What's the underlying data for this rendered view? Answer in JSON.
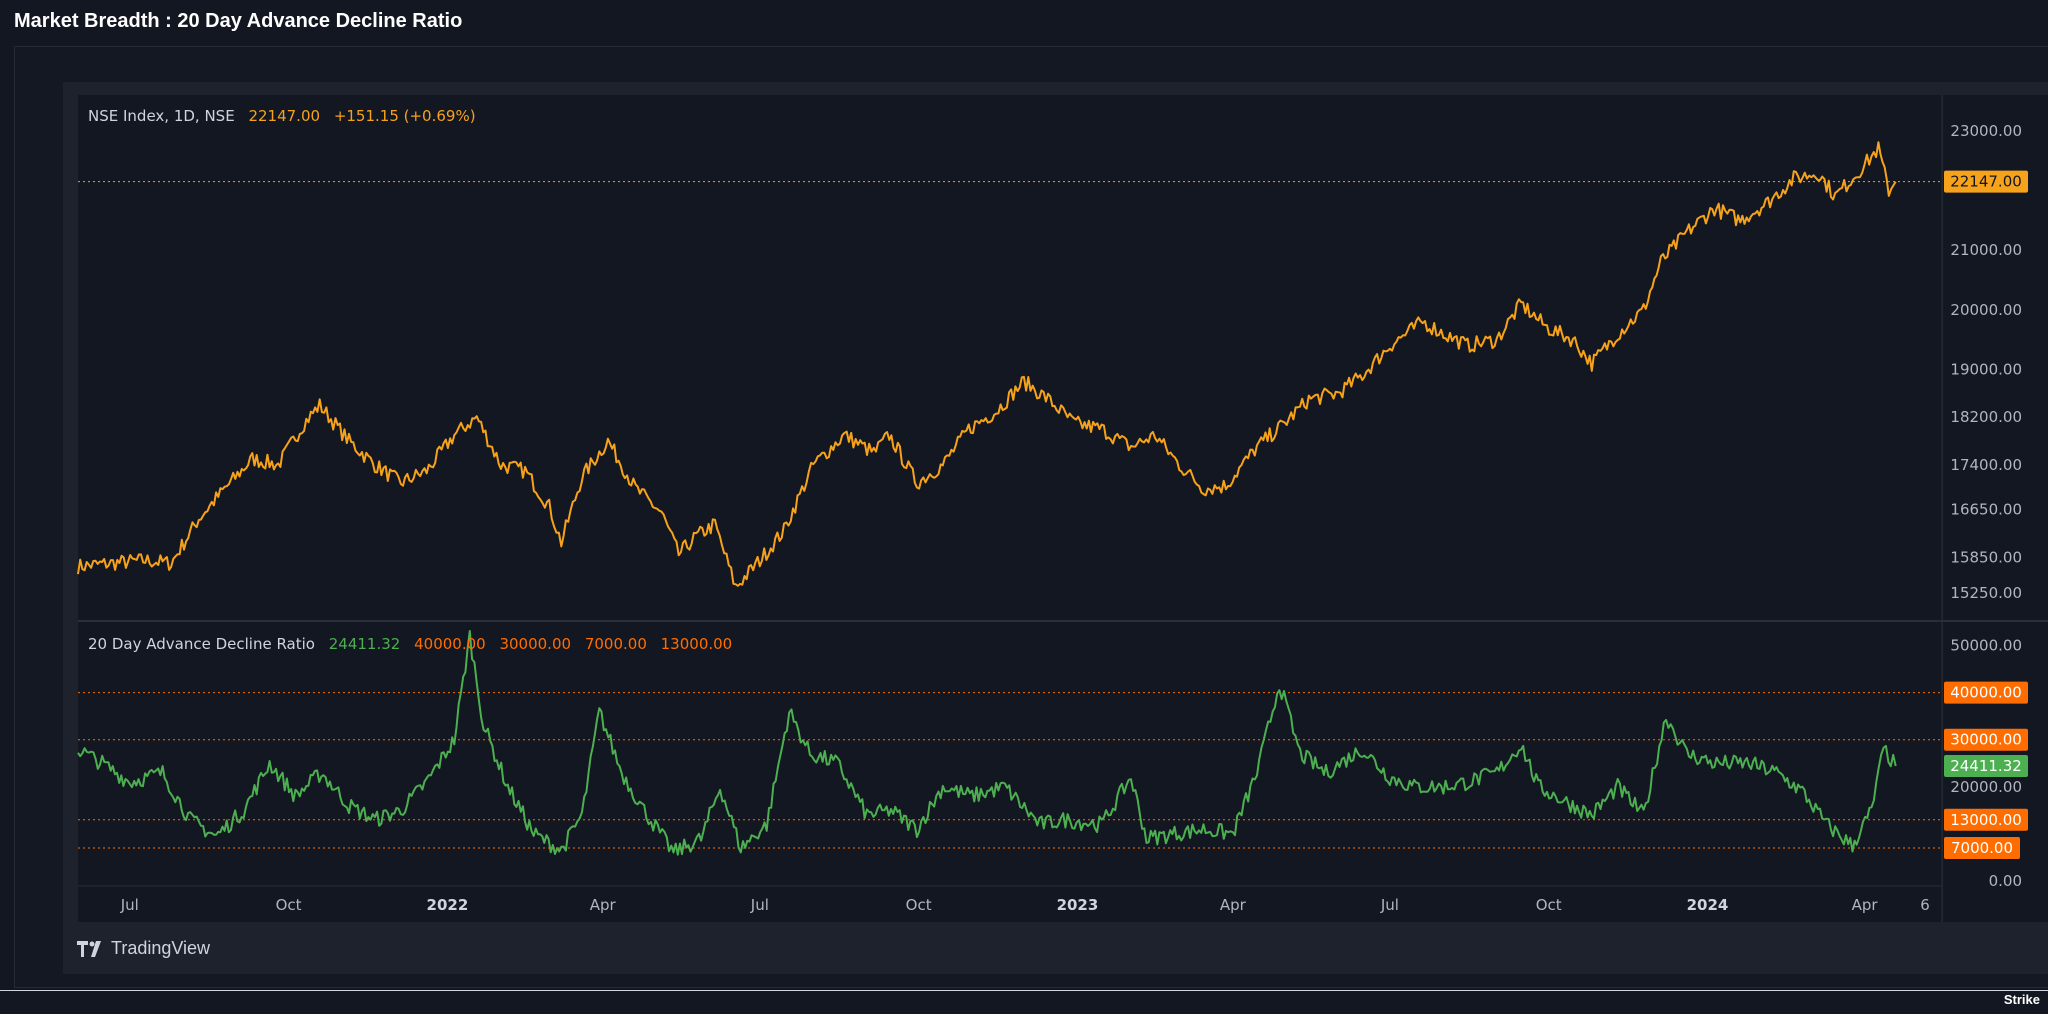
{
  "page_title": "Market Breadth : 20 Day Advance Decline Ratio",
  "brand": {
    "logo_text": "TradingView",
    "footer_text": "Strike"
  },
  "colors": {
    "background": "#131722",
    "panel": "#1e222d",
    "grid_border": "#2a2e39",
    "price_line": "#f7a21b",
    "ratio_line": "#4caf50",
    "level_line": "#ff6d00",
    "text": "#d1d4dc",
    "axis_text": "#b2b5be"
  },
  "x_axis": {
    "tick_labels": [
      "Jul",
      "Oct",
      "2022",
      "Apr",
      "Jul",
      "Oct",
      "2023",
      "Apr",
      "Jul",
      "Oct",
      "2024",
      "Apr",
      "6"
    ],
    "bold_labels": [
      "2022",
      "2023",
      "2024"
    ]
  },
  "chart_data": [
    {
      "type": "line",
      "title": "NSE Index, 1D, NSE",
      "legend": {
        "name": "NSE Index, 1D, NSE",
        "last": "22147.00",
        "change": "+151.15 (+0.69%)"
      },
      "ylim": [
        14800,
        23600
      ],
      "y_ticks": [
        "23000.00",
        "21000.00",
        "20000.00",
        "19000.00",
        "18200.00",
        "17400.00",
        "16650.00",
        "15850.00",
        "15250.00"
      ],
      "price_label": "22147.00",
      "series": [
        {
          "name": "NSE Index",
          "x": [
            "2021-06-01",
            "2021-06-20",
            "2021-07-10",
            "2021-07-25",
            "2021-08-10",
            "2021-08-25",
            "2021-09-10",
            "2021-09-25",
            "2021-10-10",
            "2021-10-19",
            "2021-11-05",
            "2021-11-20",
            "2021-12-05",
            "2021-12-20",
            "2022-01-05",
            "2022-01-18",
            "2022-02-01",
            "2022-02-15",
            "2022-03-01",
            "2022-03-08",
            "2022-03-20",
            "2022-04-04",
            "2022-04-20",
            "2022-05-05",
            "2022-05-15",
            "2022-05-25",
            "2022-06-05",
            "2022-06-17",
            "2022-07-01",
            "2022-07-15",
            "2022-08-01",
            "2022-08-19",
            "2022-09-05",
            "2022-09-14",
            "2022-09-30",
            "2022-10-15",
            "2022-10-30",
            "2022-11-15",
            "2022-12-01",
            "2022-12-15",
            "2022-12-30",
            "2023-01-15",
            "2023-02-01",
            "2023-02-15",
            "2023-03-01",
            "2023-03-15",
            "2023-03-28",
            "2023-04-15",
            "2023-05-01",
            "2023-05-15",
            "2023-06-01",
            "2023-06-15",
            "2023-07-01",
            "2023-07-20",
            "2023-08-01",
            "2023-08-15",
            "2023-09-01",
            "2023-09-15",
            "2023-09-30",
            "2023-10-15",
            "2023-10-26",
            "2023-11-10",
            "2023-11-25",
            "2023-12-05",
            "2023-12-20",
            "2024-01-05",
            "2024-01-20",
            "2024-02-05",
            "2024-02-20",
            "2024-03-05",
            "2024-03-15",
            "2024-03-28",
            "2024-04-09",
            "2024-04-15",
            "2024-04-19"
          ],
          "values": [
            15700,
            15750,
            15800,
            15750,
            16500,
            17000,
            17500,
            17400,
            18100,
            18400,
            17800,
            17400,
            17100,
            17300,
            17900,
            18200,
            17400,
            17300,
            16700,
            16100,
            17200,
            17800,
            17000,
            16600,
            15900,
            16200,
            16400,
            15350,
            15800,
            16300,
            17400,
            17900,
            17600,
            17900,
            17100,
            17400,
            18000,
            18300,
            18800,
            18500,
            18100,
            18000,
            17700,
            17900,
            17400,
            17000,
            17050,
            17700,
            18100,
            18500,
            18600,
            18900,
            19400,
            19800,
            19600,
            19400,
            19500,
            20100,
            19700,
            19500,
            19100,
            19600,
            20000,
            20800,
            21300,
            21700,
            21500,
            21800,
            22200,
            22300,
            21900,
            22300,
            22700,
            22000,
            22147
          ]
        }
      ]
    },
    {
      "type": "line",
      "title": "20 Day Advance Decline Ratio",
      "legend": {
        "name": "20 Day Advance Decline Ratio",
        "values": [
          "24411.32",
          "40000.00",
          "30000.00",
          "7000.00",
          "13000.00"
        ]
      },
      "ylim": [
        0,
        55000
      ],
      "y_ticks": [
        "50000.00",
        "20000.00",
        "0.00"
      ],
      "last_label": "24411.32",
      "levels": [
        {
          "value": 40000,
          "label": "40000.00"
        },
        {
          "value": 30000,
          "label": "30000.00"
        },
        {
          "value": 13000,
          "label": "13000.00"
        },
        {
          "value": 7000,
          "label": "7000.00"
        }
      ],
      "series": [
        {
          "name": "20 Day Advance Decline Ratio",
          "x": [
            "2021-06-01",
            "2021-06-15",
            "2021-07-01",
            "2021-07-20",
            "2021-08-05",
            "2021-08-20",
            "2021-09-05",
            "2021-09-20",
            "2021-10-05",
            "2021-10-20",
            "2021-11-05",
            "2021-11-20",
            "2021-12-05",
            "2021-12-20",
            "2022-01-05",
            "2022-01-14",
            "2022-01-22",
            "2022-02-05",
            "2022-02-20",
            "2022-03-08",
            "2022-03-20",
            "2022-03-30",
            "2022-04-12",
            "2022-04-25",
            "2022-05-12",
            "2022-05-28",
            "2022-06-08",
            "2022-06-20",
            "2022-07-05",
            "2022-07-18",
            "2022-07-30",
            "2022-08-15",
            "2022-09-01",
            "2022-09-15",
            "2022-09-30",
            "2022-10-15",
            "2022-11-01",
            "2022-11-20",
            "2022-12-10",
            "2022-12-25",
            "2023-01-15",
            "2023-02-01",
            "2023-02-10",
            "2023-02-25",
            "2023-03-15",
            "2023-04-01",
            "2023-04-15",
            "2023-04-28",
            "2023-05-10",
            "2023-05-25",
            "2023-06-15",
            "2023-07-01",
            "2023-07-15",
            "2023-08-01",
            "2023-08-15",
            "2023-09-01",
            "2023-09-15",
            "2023-09-25",
            "2023-10-10",
            "2023-10-26",
            "2023-11-10",
            "2023-11-25",
            "2023-12-08",
            "2023-12-20",
            "2024-01-05",
            "2024-01-25",
            "2024-02-10",
            "2024-02-25",
            "2024-03-10",
            "2024-03-25",
            "2024-04-05",
            "2024-04-12",
            "2024-04-19"
          ],
          "values": [
            28000,
            25000,
            21000,
            23000,
            13000,
            9500,
            15000,
            25000,
            18000,
            23000,
            16000,
            13000,
            15000,
            21000,
            30000,
            52000,
            33000,
            20000,
            10000,
            6500,
            14000,
            36000,
            23000,
            15000,
            6000,
            9000,
            20000,
            7000,
            12000,
            36000,
            27000,
            25000,
            14000,
            15000,
            11000,
            20000,
            18000,
            20000,
            12000,
            13000,
            12000,
            22000,
            9000,
            10000,
            11000,
            10000,
            23000,
            42000,
            27000,
            23000,
            28000,
            22000,
            20000,
            20000,
            21000,
            23000,
            29000,
            20000,
            17000,
            14000,
            20000,
            14000,
            35000,
            27000,
            25000,
            25000,
            23000,
            19000,
            12000,
            7500,
            15000,
            28000,
            24411
          ]
        }
      ]
    }
  ]
}
